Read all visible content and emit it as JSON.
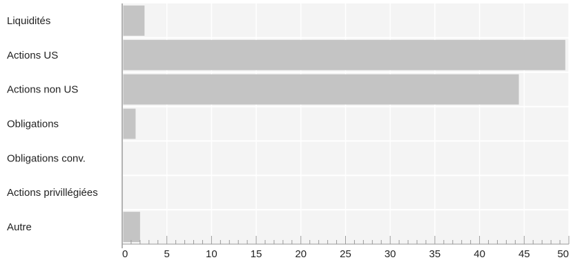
{
  "chart_data": {
    "type": "bar",
    "orientation": "horizontal",
    "categories": [
      "Liquidités",
      "Actions US",
      "Actions non US",
      "Obligations",
      "Obligations conv.",
      "Actions privillégiées",
      "Autre"
    ],
    "values": [
      2.5,
      49.6,
      44.4,
      1.5,
      0,
      0,
      2.0
    ],
    "xlim": [
      0,
      50
    ],
    "x_ticks": [
      0,
      5,
      10,
      15,
      20,
      25,
      30,
      35,
      40,
      45,
      50
    ],
    "x_tick_labels": [
      "0",
      "5",
      "10",
      "15",
      "20",
      "25",
      "30",
      "35",
      "40",
      "45",
      "50"
    ],
    "title": "",
    "xlabel": "",
    "ylabel": "",
    "grid": true,
    "legend": "none",
    "colors": {
      "bar": "#c4c4c4",
      "plot_background": "#f4f4f4",
      "gridline": "#ffffff",
      "axis": "#999999",
      "text": "#222222"
    }
  }
}
